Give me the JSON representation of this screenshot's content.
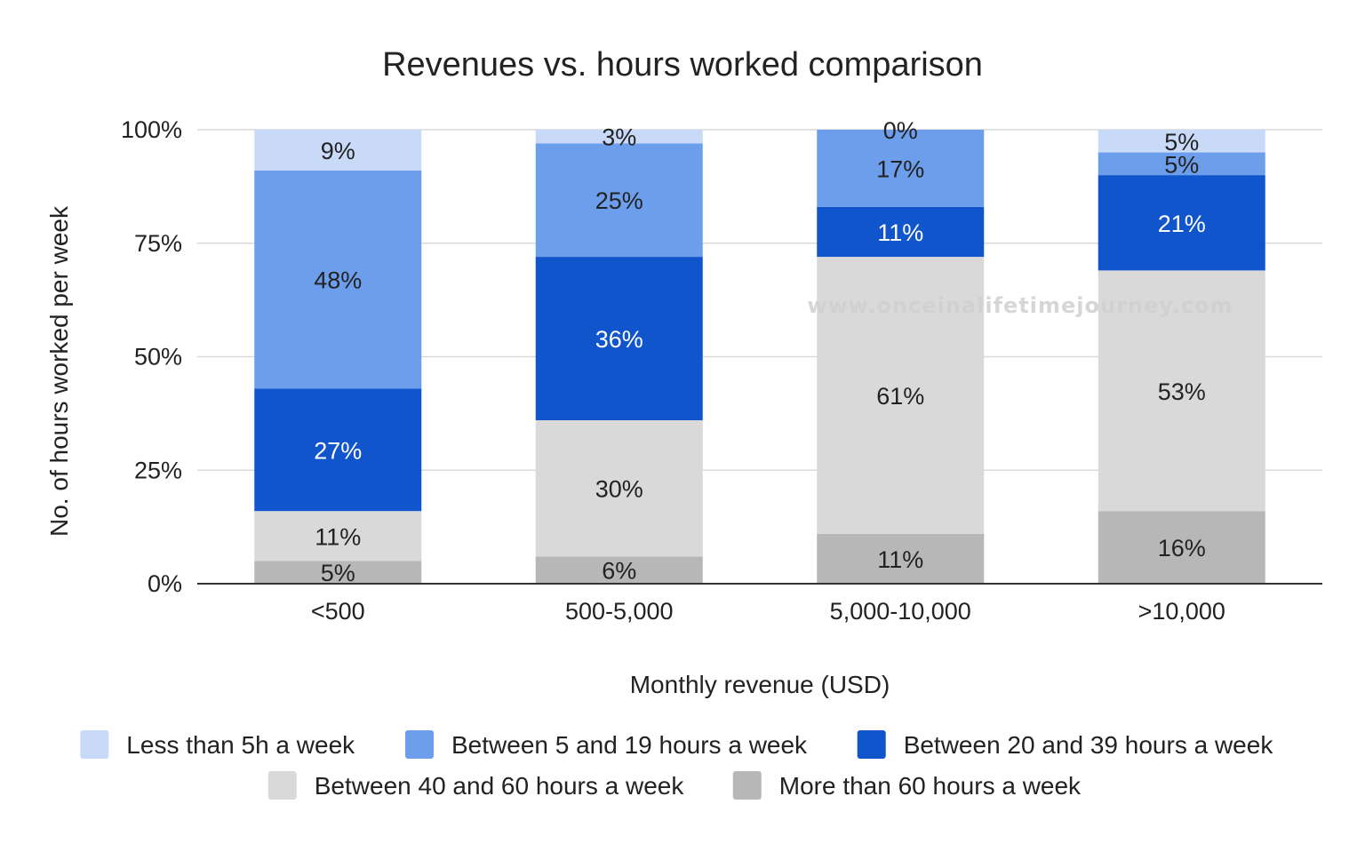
{
  "chart_data": {
    "type": "bar",
    "stacked": true,
    "normalized": true,
    "title": "Revenues vs. hours worked comparison",
    "xlabel": "Monthly revenue (USD)",
    "ylabel": "No. of hours worked per week",
    "ylim": [
      0,
      100
    ],
    "yticks": [
      "0%",
      "25%",
      "50%",
      "75%",
      "100%"
    ],
    "grid": true,
    "legend_position": "bottom",
    "categories": [
      "<500",
      "500-5,000",
      "5,000-10,000",
      ">10,000"
    ],
    "series": [
      {
        "name": "More than 60 hours a week",
        "color": "#b7b7b7",
        "label_color": "#222222",
        "values": [
          5,
          6,
          11,
          16
        ]
      },
      {
        "name": "Between 40 and 60 hours a week",
        "color": "#d9d9d9",
        "label_color": "#222222",
        "values": [
          11,
          30,
          61,
          53
        ]
      },
      {
        "name": "Between 20 and 39 hours a week",
        "color": "#1155cc",
        "label_color": "#ffffff",
        "values": [
          27,
          36,
          11,
          21
        ]
      },
      {
        "name": "Between 5 and 19 hours a week",
        "color": "#6d9eeb",
        "label_color": "#222222",
        "values": [
          48,
          25,
          17,
          5
        ]
      },
      {
        "name": "Less than 5h a week",
        "color": "#c9daf8",
        "label_color": "#222222",
        "values": [
          9,
          3,
          0,
          5
        ]
      }
    ],
    "data_labels": [
      [
        "5%",
        "11%",
        "27%",
        "48%",
        "9%"
      ],
      [
        "6%",
        "30%",
        "36%",
        "25%",
        "3%"
      ],
      [
        "11%",
        "61%",
        "11%",
        "17%",
        "0%"
      ],
      [
        "16%",
        "53%",
        "21%",
        "5%",
        "5%"
      ]
    ],
    "legend_order": [
      "Less than 5h a week",
      "Between 5 and 19 hours a week",
      "Between 20 and 39 hours a week",
      "Between 40 and 60 hours a week",
      "More than 60 hours a week"
    ]
  },
  "watermark": "www.onceinalifetimejourney.com"
}
